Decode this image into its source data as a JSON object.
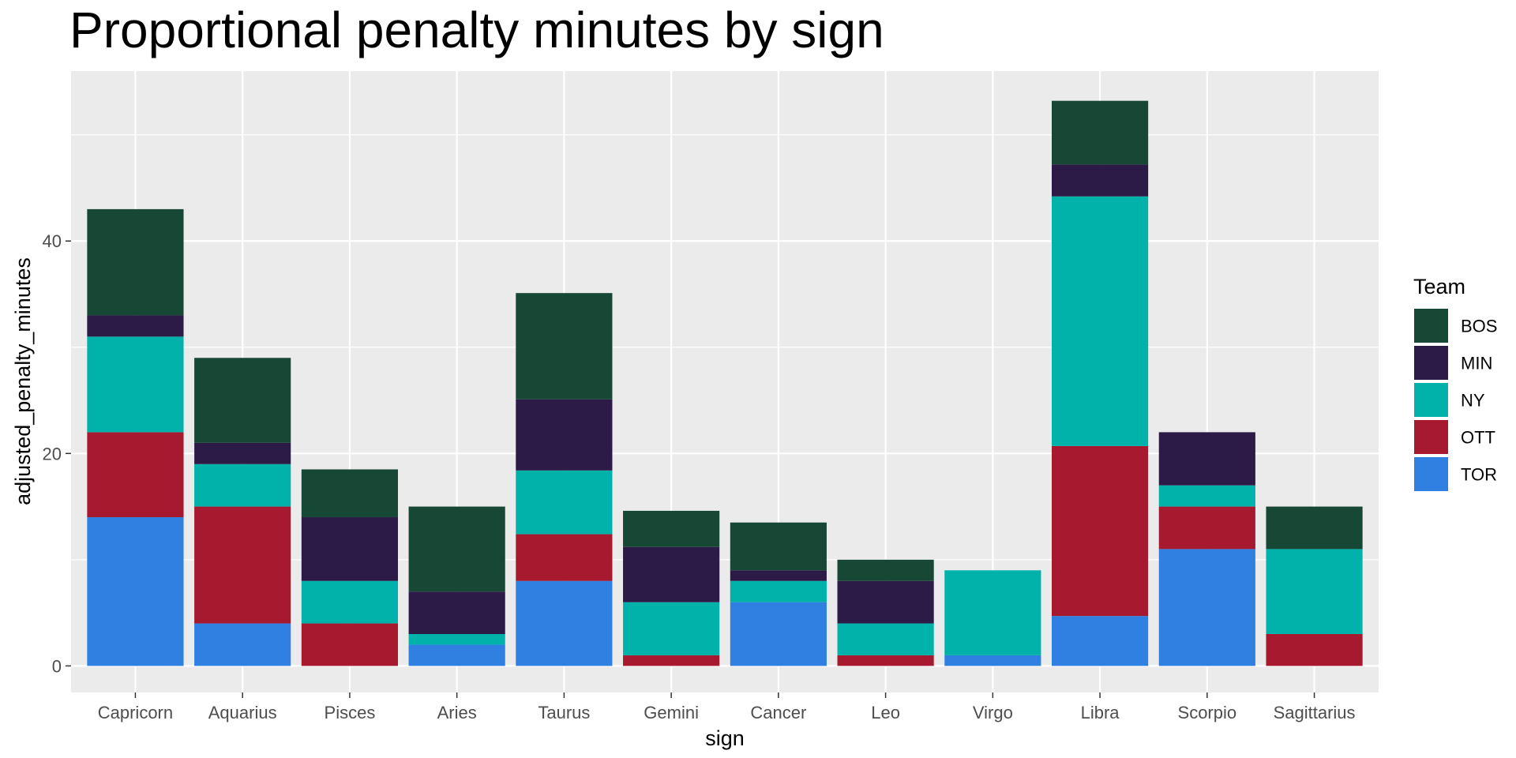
{
  "chart_data": {
    "type": "bar",
    "stacked": true,
    "title": "Proportional penalty minutes by sign",
    "xlabel": "sign",
    "ylabel": "adjusted_penalty_minutes",
    "categories": [
      "Capricorn",
      "Aquarius",
      "Pisces",
      "Aries",
      "Taurus",
      "Gemini",
      "Cancer",
      "Leo",
      "Virgo",
      "Libra",
      "Scorpio",
      "Sagittarius"
    ],
    "y_ticks": [
      "0",
      "20",
      "40"
    ],
    "ylim": [
      -2.5,
      56
    ],
    "grid": true,
    "legend": {
      "title": "Team",
      "position": "right"
    },
    "series": [
      {
        "name": "TOR",
        "color": "#2f80e0",
        "values": [
          14,
          4,
          0,
          2,
          8,
          0,
          6,
          0,
          1,
          4.7,
          11,
          0
        ]
      },
      {
        "name": "OTT",
        "color": "#a6192e",
        "values": [
          8,
          11,
          4,
          0,
          4.4,
          1,
          0,
          1,
          0,
          16,
          4,
          3
        ]
      },
      {
        "name": "NY",
        "color": "#00b2a9",
        "values": [
          9,
          4,
          4,
          1,
          6,
          5,
          2,
          3,
          8,
          23.5,
          2,
          8
        ]
      },
      {
        "name": "MIN",
        "color": "#2c1b46",
        "values": [
          2,
          2,
          6,
          4,
          6.7,
          5.2,
          1,
          4,
          0,
          3,
          5,
          0
        ]
      },
      {
        "name": "BOS",
        "color": "#174735",
        "values": [
          10,
          8,
          4.5,
          8,
          10,
          3.4,
          4.5,
          2,
          0,
          6,
          0,
          4
        ]
      }
    ],
    "legend_order": [
      "BOS",
      "MIN",
      "NY",
      "OTT",
      "TOR"
    ]
  }
}
